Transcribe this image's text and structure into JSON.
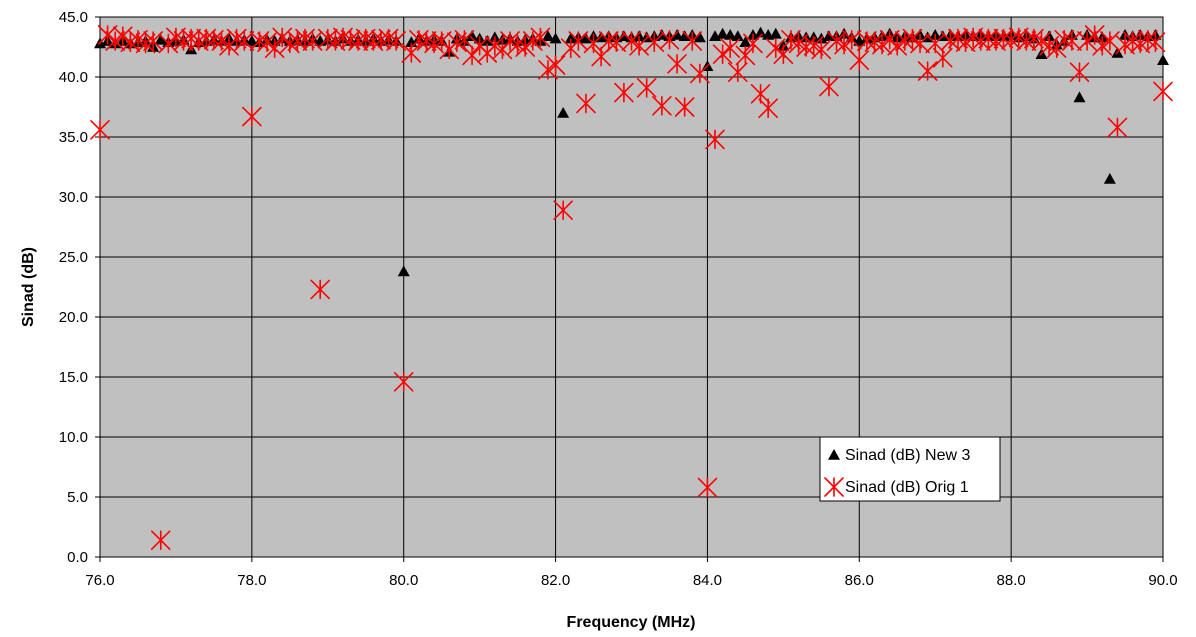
{
  "chart_data": {
    "type": "scatter",
    "title": "",
    "xlabel": "Frequency (MHz)",
    "ylabel": "Sinad (dB)",
    "xlim": [
      76,
      90
    ],
    "ylim": [
      0,
      45
    ],
    "x_ticks": [
      "76.0",
      "78.0",
      "80.0",
      "82.0",
      "84.0",
      "86.0",
      "88.0",
      "90.0"
    ],
    "y_ticks": [
      "0.0",
      "5.0",
      "10.0",
      "15.0",
      "20.0",
      "25.0",
      "30.0",
      "35.0",
      "40.0",
      "45.0"
    ],
    "grid": true,
    "plot_background": "#c0c0c0",
    "legend": {
      "position": "bottom-right-inside"
    },
    "series": [
      {
        "name": "Sinad (dB) New 3",
        "marker": "triangle",
        "color": "#000000",
        "points": [
          [
            76.0,
            42.8
          ],
          [
            76.1,
            43.0
          ],
          [
            76.2,
            42.8
          ],
          [
            76.3,
            43.0
          ],
          [
            76.4,
            42.8
          ],
          [
            76.5,
            42.9
          ],
          [
            76.6,
            43.0
          ],
          [
            76.7,
            42.5
          ],
          [
            76.8,
            43.1
          ],
          [
            76.9,
            42.9
          ],
          [
            77.0,
            43.0
          ],
          [
            77.1,
            43.1
          ],
          [
            77.2,
            42.3
          ],
          [
            77.3,
            42.9
          ],
          [
            77.4,
            43.0
          ],
          [
            77.5,
            43.1
          ],
          [
            77.6,
            43.0
          ],
          [
            77.7,
            43.2
          ],
          [
            77.8,
            43.0
          ],
          [
            77.9,
            43.1
          ],
          [
            78.0,
            43.0
          ],
          [
            78.1,
            42.9
          ],
          [
            78.2,
            43.1
          ],
          [
            78.3,
            43.0
          ],
          [
            78.4,
            43.2
          ],
          [
            78.5,
            43.0
          ],
          [
            78.6,
            43.1
          ],
          [
            78.7,
            43.0
          ],
          [
            78.8,
            43.2
          ],
          [
            78.9,
            43.0
          ],
          [
            79.0,
            43.1
          ],
          [
            79.1,
            43.0
          ],
          [
            79.2,
            43.2
          ],
          [
            79.3,
            43.0
          ],
          [
            79.4,
            43.1
          ],
          [
            79.5,
            43.0
          ],
          [
            79.6,
            43.2
          ],
          [
            79.7,
            43.0
          ],
          [
            79.8,
            43.1
          ],
          [
            79.9,
            43.0
          ],
          [
            80.0,
            23.8
          ],
          [
            80.1,
            42.9
          ],
          [
            80.2,
            43.2
          ],
          [
            80.3,
            43.0
          ],
          [
            80.4,
            43.1
          ],
          [
            80.5,
            43.0
          ],
          [
            80.6,
            42.1
          ],
          [
            80.7,
            43.2
          ],
          [
            80.8,
            43.0
          ],
          [
            80.9,
            43.4
          ],
          [
            81.0,
            43.2
          ],
          [
            81.1,
            43.0
          ],
          [
            81.2,
            43.3
          ],
          [
            81.3,
            43.1
          ],
          [
            81.4,
            43.2
          ],
          [
            81.5,
            43.0
          ],
          [
            81.6,
            43.1
          ],
          [
            81.7,
            43.2
          ],
          [
            81.8,
            43.0
          ],
          [
            81.9,
            43.4
          ],
          [
            82.0,
            43.2
          ],
          [
            82.1,
            37.0
          ],
          [
            82.2,
            43.2
          ],
          [
            82.3,
            43.3
          ],
          [
            82.4,
            43.2
          ],
          [
            82.5,
            43.4
          ],
          [
            82.6,
            43.3
          ],
          [
            82.7,
            43.4
          ],
          [
            82.8,
            43.3
          ],
          [
            82.9,
            43.4
          ],
          [
            83.0,
            43.3
          ],
          [
            83.1,
            43.4
          ],
          [
            83.2,
            43.3
          ],
          [
            83.3,
            43.4
          ],
          [
            83.4,
            43.5
          ],
          [
            83.5,
            43.4
          ],
          [
            83.6,
            43.5
          ],
          [
            83.7,
            43.4
          ],
          [
            83.8,
            43.5
          ],
          [
            83.9,
            43.3
          ],
          [
            84.0,
            40.9
          ],
          [
            84.1,
            43.4
          ],
          [
            84.2,
            43.6
          ],
          [
            84.3,
            43.5
          ],
          [
            84.4,
            43.4
          ],
          [
            84.5,
            42.9
          ],
          [
            84.6,
            43.5
          ],
          [
            84.7,
            43.7
          ],
          [
            84.8,
            43.5
          ],
          [
            84.9,
            43.6
          ],
          [
            85.0,
            42.6
          ],
          [
            85.1,
            43.3
          ],
          [
            85.2,
            43.4
          ],
          [
            85.3,
            43.3
          ],
          [
            85.4,
            43.3
          ],
          [
            85.5,
            43.2
          ],
          [
            85.6,
            43.4
          ],
          [
            85.7,
            43.4
          ],
          [
            85.8,
            43.6
          ],
          [
            85.9,
            43.3
          ],
          [
            86.0,
            43.0
          ],
          [
            86.1,
            43.2
          ],
          [
            86.2,
            43.3
          ],
          [
            86.3,
            43.4
          ],
          [
            86.4,
            43.6
          ],
          [
            86.5,
            43.3
          ],
          [
            86.6,
            43.4
          ],
          [
            86.7,
            43.3
          ],
          [
            86.8,
            43.5
          ],
          [
            86.9,
            43.3
          ],
          [
            87.0,
            43.5
          ],
          [
            87.1,
            43.4
          ],
          [
            87.2,
            43.5
          ],
          [
            87.3,
            43.4
          ],
          [
            87.4,
            43.5
          ],
          [
            87.5,
            43.4
          ],
          [
            87.6,
            43.5
          ],
          [
            87.7,
            43.4
          ],
          [
            87.8,
            43.5
          ],
          [
            87.9,
            43.4
          ],
          [
            88.0,
            43.5
          ],
          [
            88.1,
            43.3
          ],
          [
            88.2,
            43.4
          ],
          [
            88.3,
            43.2
          ],
          [
            88.4,
            41.9
          ],
          [
            88.5,
            43.4
          ],
          [
            88.6,
            42.7
          ],
          [
            88.7,
            43.0
          ],
          [
            88.8,
            43.5
          ],
          [
            88.9,
            38.3
          ],
          [
            89.0,
            43.5
          ],
          [
            89.1,
            43.3
          ],
          [
            89.2,
            43.3
          ],
          [
            89.3,
            31.5
          ],
          [
            89.4,
            42.0
          ],
          [
            89.5,
            43.5
          ],
          [
            89.6,
            43.4
          ],
          [
            89.7,
            43.5
          ],
          [
            89.8,
            43.4
          ],
          [
            89.9,
            43.5
          ],
          [
            90.0,
            41.4
          ]
        ]
      },
      {
        "name": "Sinad (dB) Orig 1",
        "marker": "asterisk",
        "color": "#ff0000",
        "points": [
          [
            76.0,
            35.6
          ],
          [
            76.1,
            43.5
          ],
          [
            76.2,
            43.0
          ],
          [
            76.3,
            43.4
          ],
          [
            76.4,
            42.9
          ],
          [
            76.5,
            43.1
          ],
          [
            76.6,
            42.8
          ],
          [
            76.7,
            43.0
          ],
          [
            76.8,
            1.4
          ],
          [
            76.9,
            42.8
          ],
          [
            77.0,
            43.3
          ],
          [
            77.1,
            43.0
          ],
          [
            77.2,
            43.2
          ],
          [
            77.3,
            43.0
          ],
          [
            77.4,
            43.2
          ],
          [
            77.5,
            43.1
          ],
          [
            77.6,
            43.0
          ],
          [
            77.7,
            42.6
          ],
          [
            77.8,
            43.2
          ],
          [
            77.9,
            43.0
          ],
          [
            78.0,
            36.7
          ],
          [
            78.1,
            43.0
          ],
          [
            78.2,
            42.9
          ],
          [
            78.3,
            42.4
          ],
          [
            78.4,
            43.3
          ],
          [
            78.5,
            42.8
          ],
          [
            78.6,
            43.0
          ],
          [
            78.7,
            43.2
          ],
          [
            78.8,
            43.0
          ],
          [
            78.9,
            22.3
          ],
          [
            79.0,
            43.2
          ],
          [
            79.1,
            43.0
          ],
          [
            79.2,
            43.3
          ],
          [
            79.3,
            43.1
          ],
          [
            79.4,
            43.0
          ],
          [
            79.5,
            43.2
          ],
          [
            79.6,
            43.0
          ],
          [
            79.7,
            43.1
          ],
          [
            79.8,
            43.2
          ],
          [
            79.9,
            43.0
          ],
          [
            80.0,
            14.6
          ],
          [
            80.1,
            42.0
          ],
          [
            80.2,
            43.1
          ],
          [
            80.3,
            43.0
          ],
          [
            80.4,
            42.8
          ],
          [
            80.5,
            43.0
          ],
          [
            80.6,
            42.3
          ],
          [
            80.7,
            42.9
          ],
          [
            80.8,
            43.1
          ],
          [
            80.9,
            41.8
          ],
          [
            81.0,
            42.6
          ],
          [
            81.1,
            42.0
          ],
          [
            81.2,
            42.6
          ],
          [
            81.3,
            42.3
          ],
          [
            81.4,
            43.0
          ],
          [
            81.5,
            42.7
          ],
          [
            81.6,
            42.5
          ],
          [
            81.7,
            43.0
          ],
          [
            81.8,
            43.3
          ],
          [
            81.9,
            40.6
          ],
          [
            82.0,
            41.0
          ],
          [
            82.1,
            28.9
          ],
          [
            82.2,
            42.4
          ],
          [
            82.3,
            43.0
          ],
          [
            82.4,
            37.8
          ],
          [
            82.5,
            42.8
          ],
          [
            82.6,
            41.7
          ],
          [
            82.7,
            43.0
          ],
          [
            82.8,
            42.9
          ],
          [
            82.9,
            38.7
          ],
          [
            83.0,
            43.0
          ],
          [
            83.1,
            42.6
          ],
          [
            83.2,
            39.1
          ],
          [
            83.3,
            42.9
          ],
          [
            83.4,
            37.6
          ],
          [
            83.5,
            43.1
          ],
          [
            83.6,
            41.1
          ],
          [
            83.7,
            37.5
          ],
          [
            83.8,
            43.0
          ],
          [
            83.9,
            40.3
          ],
          [
            84.0,
            5.8
          ],
          [
            84.1,
            34.8
          ],
          [
            84.2,
            41.9
          ],
          [
            84.3,
            42.4
          ],
          [
            84.4,
            40.4
          ],
          [
            84.5,
            41.8
          ],
          [
            84.6,
            42.8
          ],
          [
            84.7,
            38.6
          ],
          [
            84.8,
            37.4
          ],
          [
            84.9,
            42.4
          ],
          [
            85.0,
            41.9
          ],
          [
            85.1,
            43.1
          ],
          [
            85.2,
            42.8
          ],
          [
            85.3,
            42.5
          ],
          [
            85.4,
            42.6
          ],
          [
            85.5,
            42.3
          ],
          [
            85.6,
            39.2
          ],
          [
            85.7,
            43.0
          ],
          [
            85.8,
            42.7
          ],
          [
            85.9,
            43.1
          ],
          [
            86.0,
            41.4
          ],
          [
            86.1,
            43.0
          ],
          [
            86.2,
            42.9
          ],
          [
            86.3,
            42.7
          ],
          [
            86.4,
            43.1
          ],
          [
            86.5,
            42.6
          ],
          [
            86.6,
            43.0
          ],
          [
            86.7,
            43.2
          ],
          [
            86.8,
            42.8
          ],
          [
            86.9,
            40.5
          ],
          [
            87.0,
            42.8
          ],
          [
            87.1,
            41.6
          ],
          [
            87.2,
            43.0
          ],
          [
            87.3,
            43.2
          ],
          [
            87.4,
            42.9
          ],
          [
            87.5,
            43.3
          ],
          [
            87.6,
            43.0
          ],
          [
            87.7,
            43.2
          ],
          [
            87.8,
            43.0
          ],
          [
            87.9,
            43.2
          ],
          [
            88.0,
            43.1
          ],
          [
            88.1,
            43.3
          ],
          [
            88.2,
            43.0
          ],
          [
            88.3,
            43.2
          ],
          [
            88.4,
            43.0
          ],
          [
            88.5,
            42.6
          ],
          [
            88.6,
            42.4
          ],
          [
            88.7,
            43.1
          ],
          [
            88.8,
            43.0
          ],
          [
            88.9,
            40.4
          ],
          [
            89.0,
            43.0
          ],
          [
            89.1,
            43.5
          ],
          [
            89.2,
            42.6
          ],
          [
            89.3,
            43.0
          ],
          [
            89.4,
            35.8
          ],
          [
            89.5,
            42.7
          ],
          [
            89.6,
            43.0
          ],
          [
            89.7,
            42.8
          ],
          [
            89.8,
            43.1
          ],
          [
            89.9,
            42.9
          ],
          [
            90.0,
            38.8
          ]
        ]
      }
    ]
  }
}
